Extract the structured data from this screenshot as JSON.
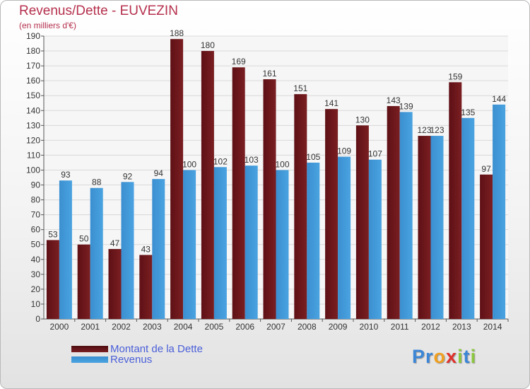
{
  "title": "Revenus/Dette - EUVEZIN",
  "subtitle": "(en milliers d'€)",
  "colors": {
    "debt": "#7a1f22",
    "revenue": "#4aa3e0",
    "title": "#b5304d",
    "legend_text": "#4a5fd8"
  },
  "logo": {
    "letters": [
      "P",
      "r",
      "o",
      "x",
      "i",
      "t",
      "i"
    ],
    "colors": [
      "#3b86d6",
      "#3b86d6",
      "#f0a020",
      "#e0302a",
      "#8cc63f",
      "#3b86d6",
      "#8cc63f"
    ]
  },
  "chart_data": {
    "type": "bar",
    "categories": [
      "2000",
      "2001",
      "2002",
      "2003",
      "2004",
      "2005",
      "2006",
      "2007",
      "2008",
      "2009",
      "2010",
      "2011",
      "2012",
      "2013",
      "2014"
    ],
    "series": [
      {
        "name": "Montant de la Dette",
        "values": [
          53,
          50,
          47,
          43,
          188,
          180,
          169,
          161,
          151,
          141,
          130,
          143,
          123,
          159,
          97
        ]
      },
      {
        "name": "Revenus",
        "values": [
          93,
          88,
          92,
          94,
          100,
          102,
          103,
          100,
          105,
          109,
          107,
          139,
          123,
          135,
          144
        ]
      }
    ],
    "ylim": [
      0,
      190
    ],
    "yticks": [
      0,
      10,
      20,
      30,
      40,
      50,
      60,
      70,
      80,
      90,
      100,
      110,
      120,
      130,
      140,
      150,
      160,
      170,
      180,
      190
    ],
    "grid": "horizontal",
    "legend_position": "bottom-left"
  }
}
